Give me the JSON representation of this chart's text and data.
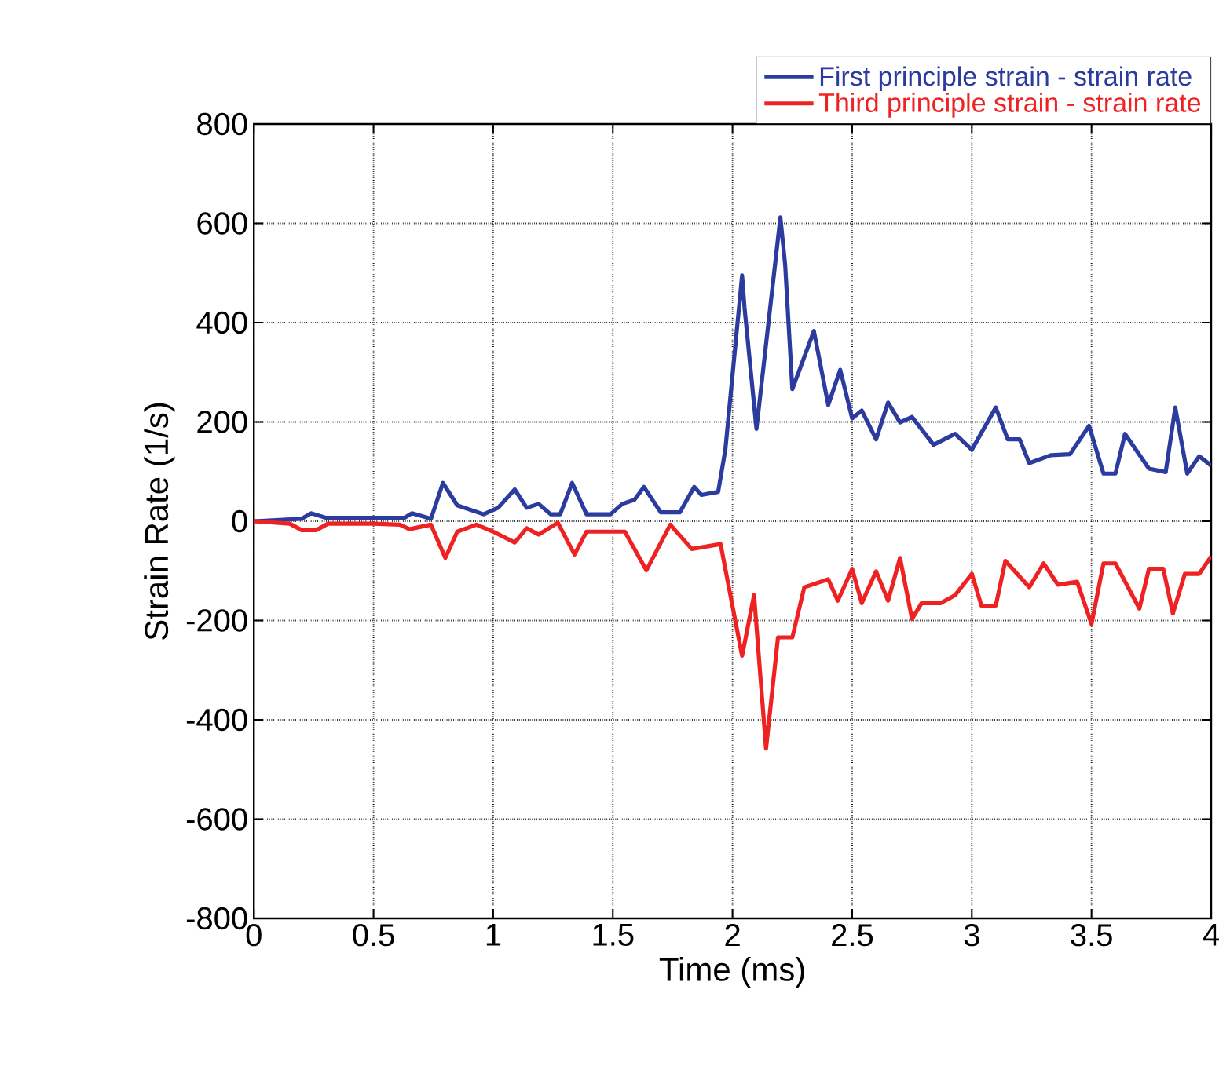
{
  "chart_data": {
    "type": "line",
    "xlabel": "Time (ms)",
    "ylabel": "Strain Rate (1/s)",
    "xlim": [
      0,
      4
    ],
    "ylim": [
      -800,
      800
    ],
    "xticks": [
      0,
      0.5,
      1,
      1.5,
      2,
      2.5,
      3,
      3.5,
      4
    ],
    "yticks": [
      -800,
      -600,
      -400,
      -200,
      0,
      200,
      400,
      600,
      800
    ],
    "grid": true,
    "legend": "top right",
    "marker": "none",
    "line_style": "solid",
    "series": [
      {
        "name": "First principle strain - strain rate",
        "color": "#2b3c9e",
        "x": [
          0,
          0.2,
          0.24,
          0.3,
          0.63,
          0.66,
          0.74,
          0.79,
          0.85,
          0.96,
          1.02,
          1.09,
          1.14,
          1.19,
          1.24,
          1.28,
          1.33,
          1.39,
          1.49,
          1.54,
          1.59,
          1.63,
          1.7,
          1.78,
          1.84,
          1.87,
          1.94,
          1.97,
          2.04,
          2.05,
          2.1,
          2.17,
          2.2,
          2.22,
          2.25,
          2.34,
          2.4,
          2.45,
          2.5,
          2.54,
          2.6,
          2.65,
          2.7,
          2.75,
          2.84,
          2.93,
          3.0,
          3.1,
          3.15,
          3.2,
          3.24,
          3.33,
          3.41,
          3.49,
          3.55,
          3.6,
          3.64,
          3.74,
          3.81,
          3.85,
          3.9,
          3.95,
          4.0
        ],
        "values": [
          0,
          5,
          16,
          7,
          7,
          16,
          5,
          77,
          32,
          14,
          27,
          64,
          27,
          35,
          14,
          14,
          77,
          14,
          14,
          35,
          43,
          69,
          18,
          18,
          69,
          53,
          59,
          144,
          495,
          431,
          186,
          484,
          612,
          516,
          266,
          383,
          234,
          305,
          207,
          223,
          165,
          239,
          199,
          210,
          154,
          176,
          144,
          229,
          165,
          165,
          117,
          133,
          135,
          192,
          96,
          96,
          176,
          106,
          99,
          229,
          96,
          131,
          112
        ]
      },
      {
        "name": "Third principle strain - strain rate",
        "color": "#ee2222",
        "x": [
          0,
          0.15,
          0.2,
          0.26,
          0.31,
          0.5,
          0.61,
          0.65,
          0.74,
          0.8,
          0.85,
          0.93,
          1.0,
          1.09,
          1.14,
          1.19,
          1.27,
          1.34,
          1.39,
          1.55,
          1.64,
          1.74,
          1.83,
          1.95,
          2.04,
          2.09,
          2.14,
          2.19,
          2.25,
          2.3,
          2.4,
          2.44,
          2.5,
          2.54,
          2.6,
          2.65,
          2.7,
          2.75,
          2.79,
          2.87,
          2.93,
          3.0,
          3.04,
          3.1,
          3.14,
          3.24,
          3.3,
          3.36,
          3.44,
          3.5,
          3.55,
          3.6,
          3.7,
          3.74,
          3.8,
          3.84,
          3.89,
          3.95,
          4.0
        ],
        "values": [
          0,
          -5,
          -18,
          -18,
          -5,
          -5,
          -7,
          -16,
          -7,
          -74,
          -21,
          -7,
          -21,
          -43,
          -14,
          -27,
          -3,
          -67,
          -21,
          -21,
          -99,
          -7,
          -56,
          -46,
          -271,
          -149,
          -458,
          -234,
          -234,
          -133,
          -117,
          -160,
          -96,
          -165,
          -101,
          -160,
          -74,
          -197,
          -165,
          -165,
          -149,
          -106,
          -170,
          -170,
          -80,
          -133,
          -85,
          -128,
          -122,
          -207,
          -85,
          -85,
          -176,
          -96,
          -96,
          -186,
          -106,
          -106,
          -71
        ]
      }
    ]
  }
}
